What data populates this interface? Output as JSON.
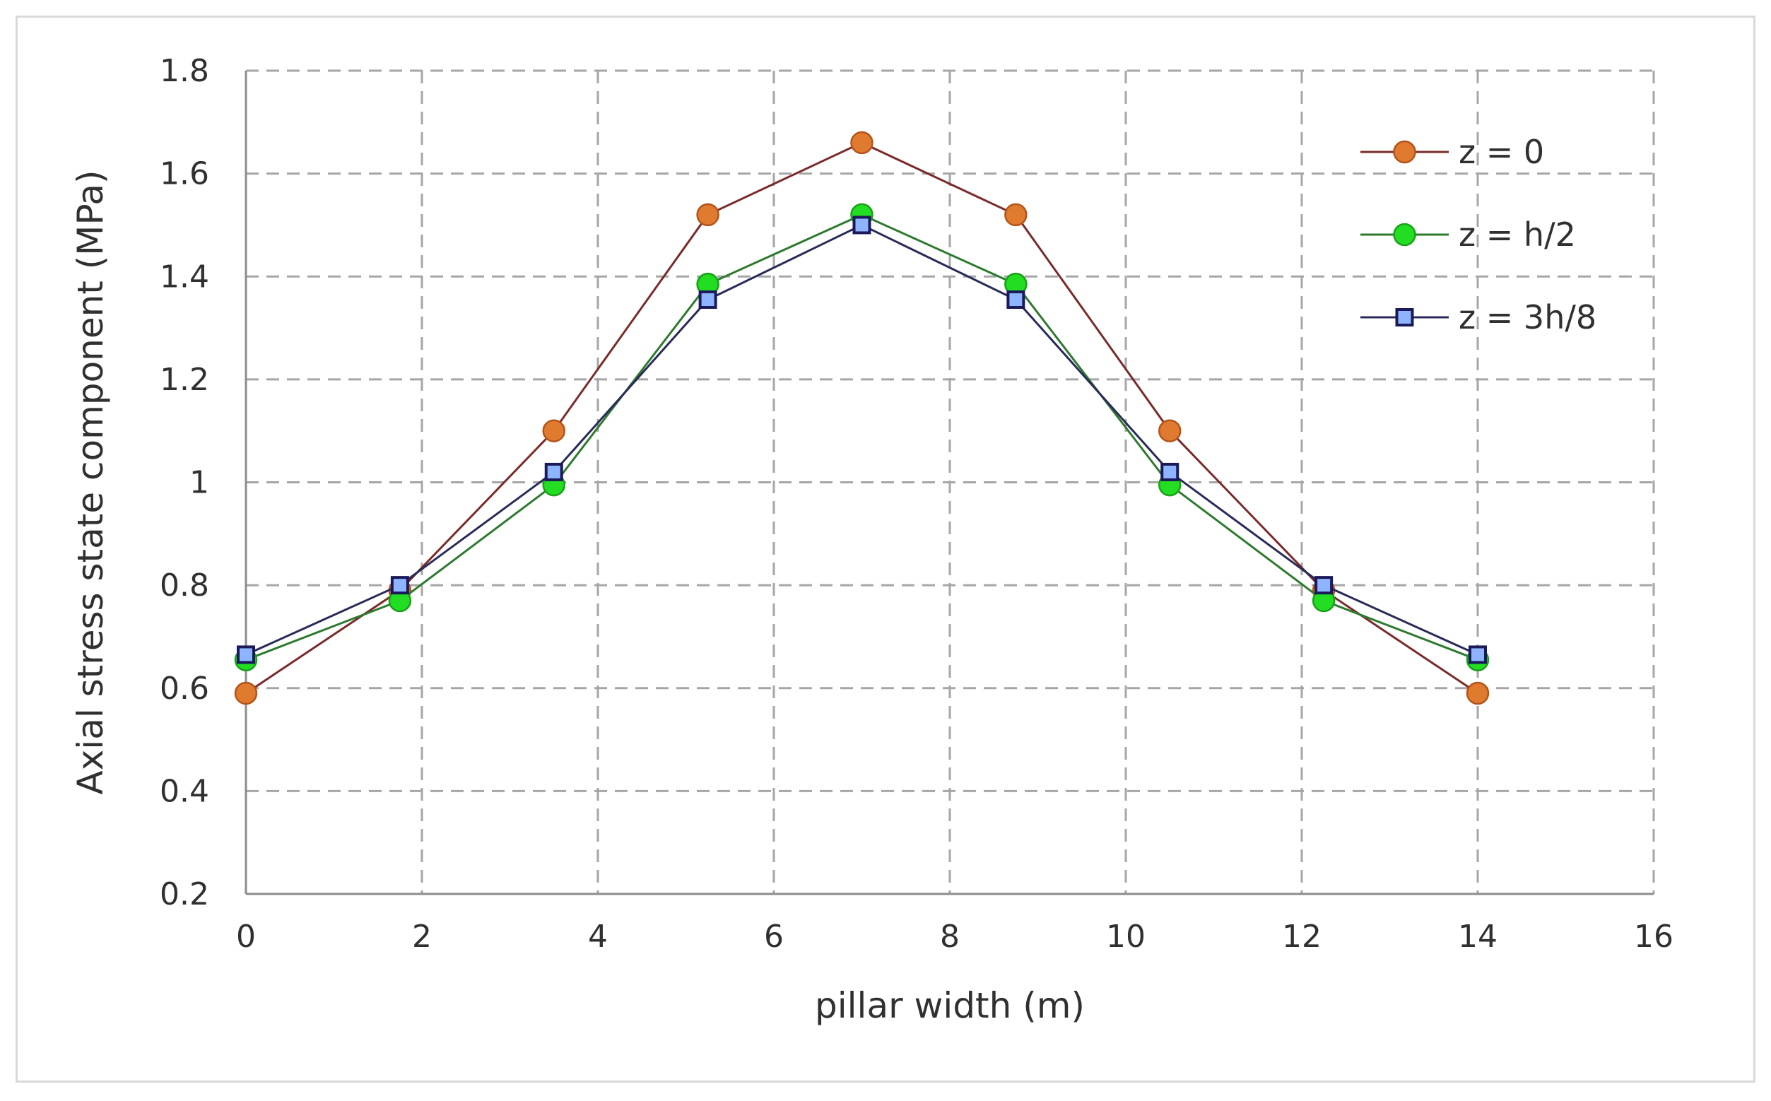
{
  "chart_data": {
    "type": "line",
    "title": "",
    "xlabel": "pillar width (m)",
    "ylabel": "Axial stress state component (MPa)",
    "xlim": [
      0,
      16
    ],
    "ylim": [
      0.2,
      1.8
    ],
    "xticks": [
      "0",
      "2",
      "4",
      "6",
      "8",
      "10",
      "12",
      "14",
      "16"
    ],
    "yticks": [
      "0.2",
      "0.4",
      "0.6",
      "0.8",
      "1",
      "1.2",
      "1.4",
      "1.6",
      "1.8"
    ],
    "grid": true,
    "legend_position": "top-right",
    "x": [
      0,
      1.75,
      3.5,
      5.25,
      7.0,
      8.75,
      10.5,
      12.25,
      14.0
    ],
    "series": [
      {
        "name": "z = 0",
        "marker": "circle",
        "line_color": "#7b2a2a",
        "marker_fill": "#e07a2e",
        "marker_stroke": "#b3541a",
        "values": [
          0.59,
          0.79,
          1.1,
          1.52,
          1.66,
          1.52,
          1.1,
          0.79,
          0.59
        ]
      },
      {
        "name": "z = h/2",
        "marker": "circle",
        "line_color": "#2e7a2e",
        "marker_fill": "#22dd22",
        "marker_stroke": "#1aa01a",
        "values": [
          0.655,
          0.77,
          0.995,
          1.385,
          1.52,
          1.385,
          0.995,
          0.77,
          0.655
        ]
      },
      {
        "name": "z = 3h/8",
        "marker": "square",
        "line_color": "#2a2a5a",
        "marker_fill": "#8fb4ff",
        "marker_stroke": "#1a1a5a",
        "values": [
          0.665,
          0.8,
          1.02,
          1.355,
          1.5,
          1.355,
          1.02,
          0.8,
          0.665
        ]
      }
    ]
  }
}
